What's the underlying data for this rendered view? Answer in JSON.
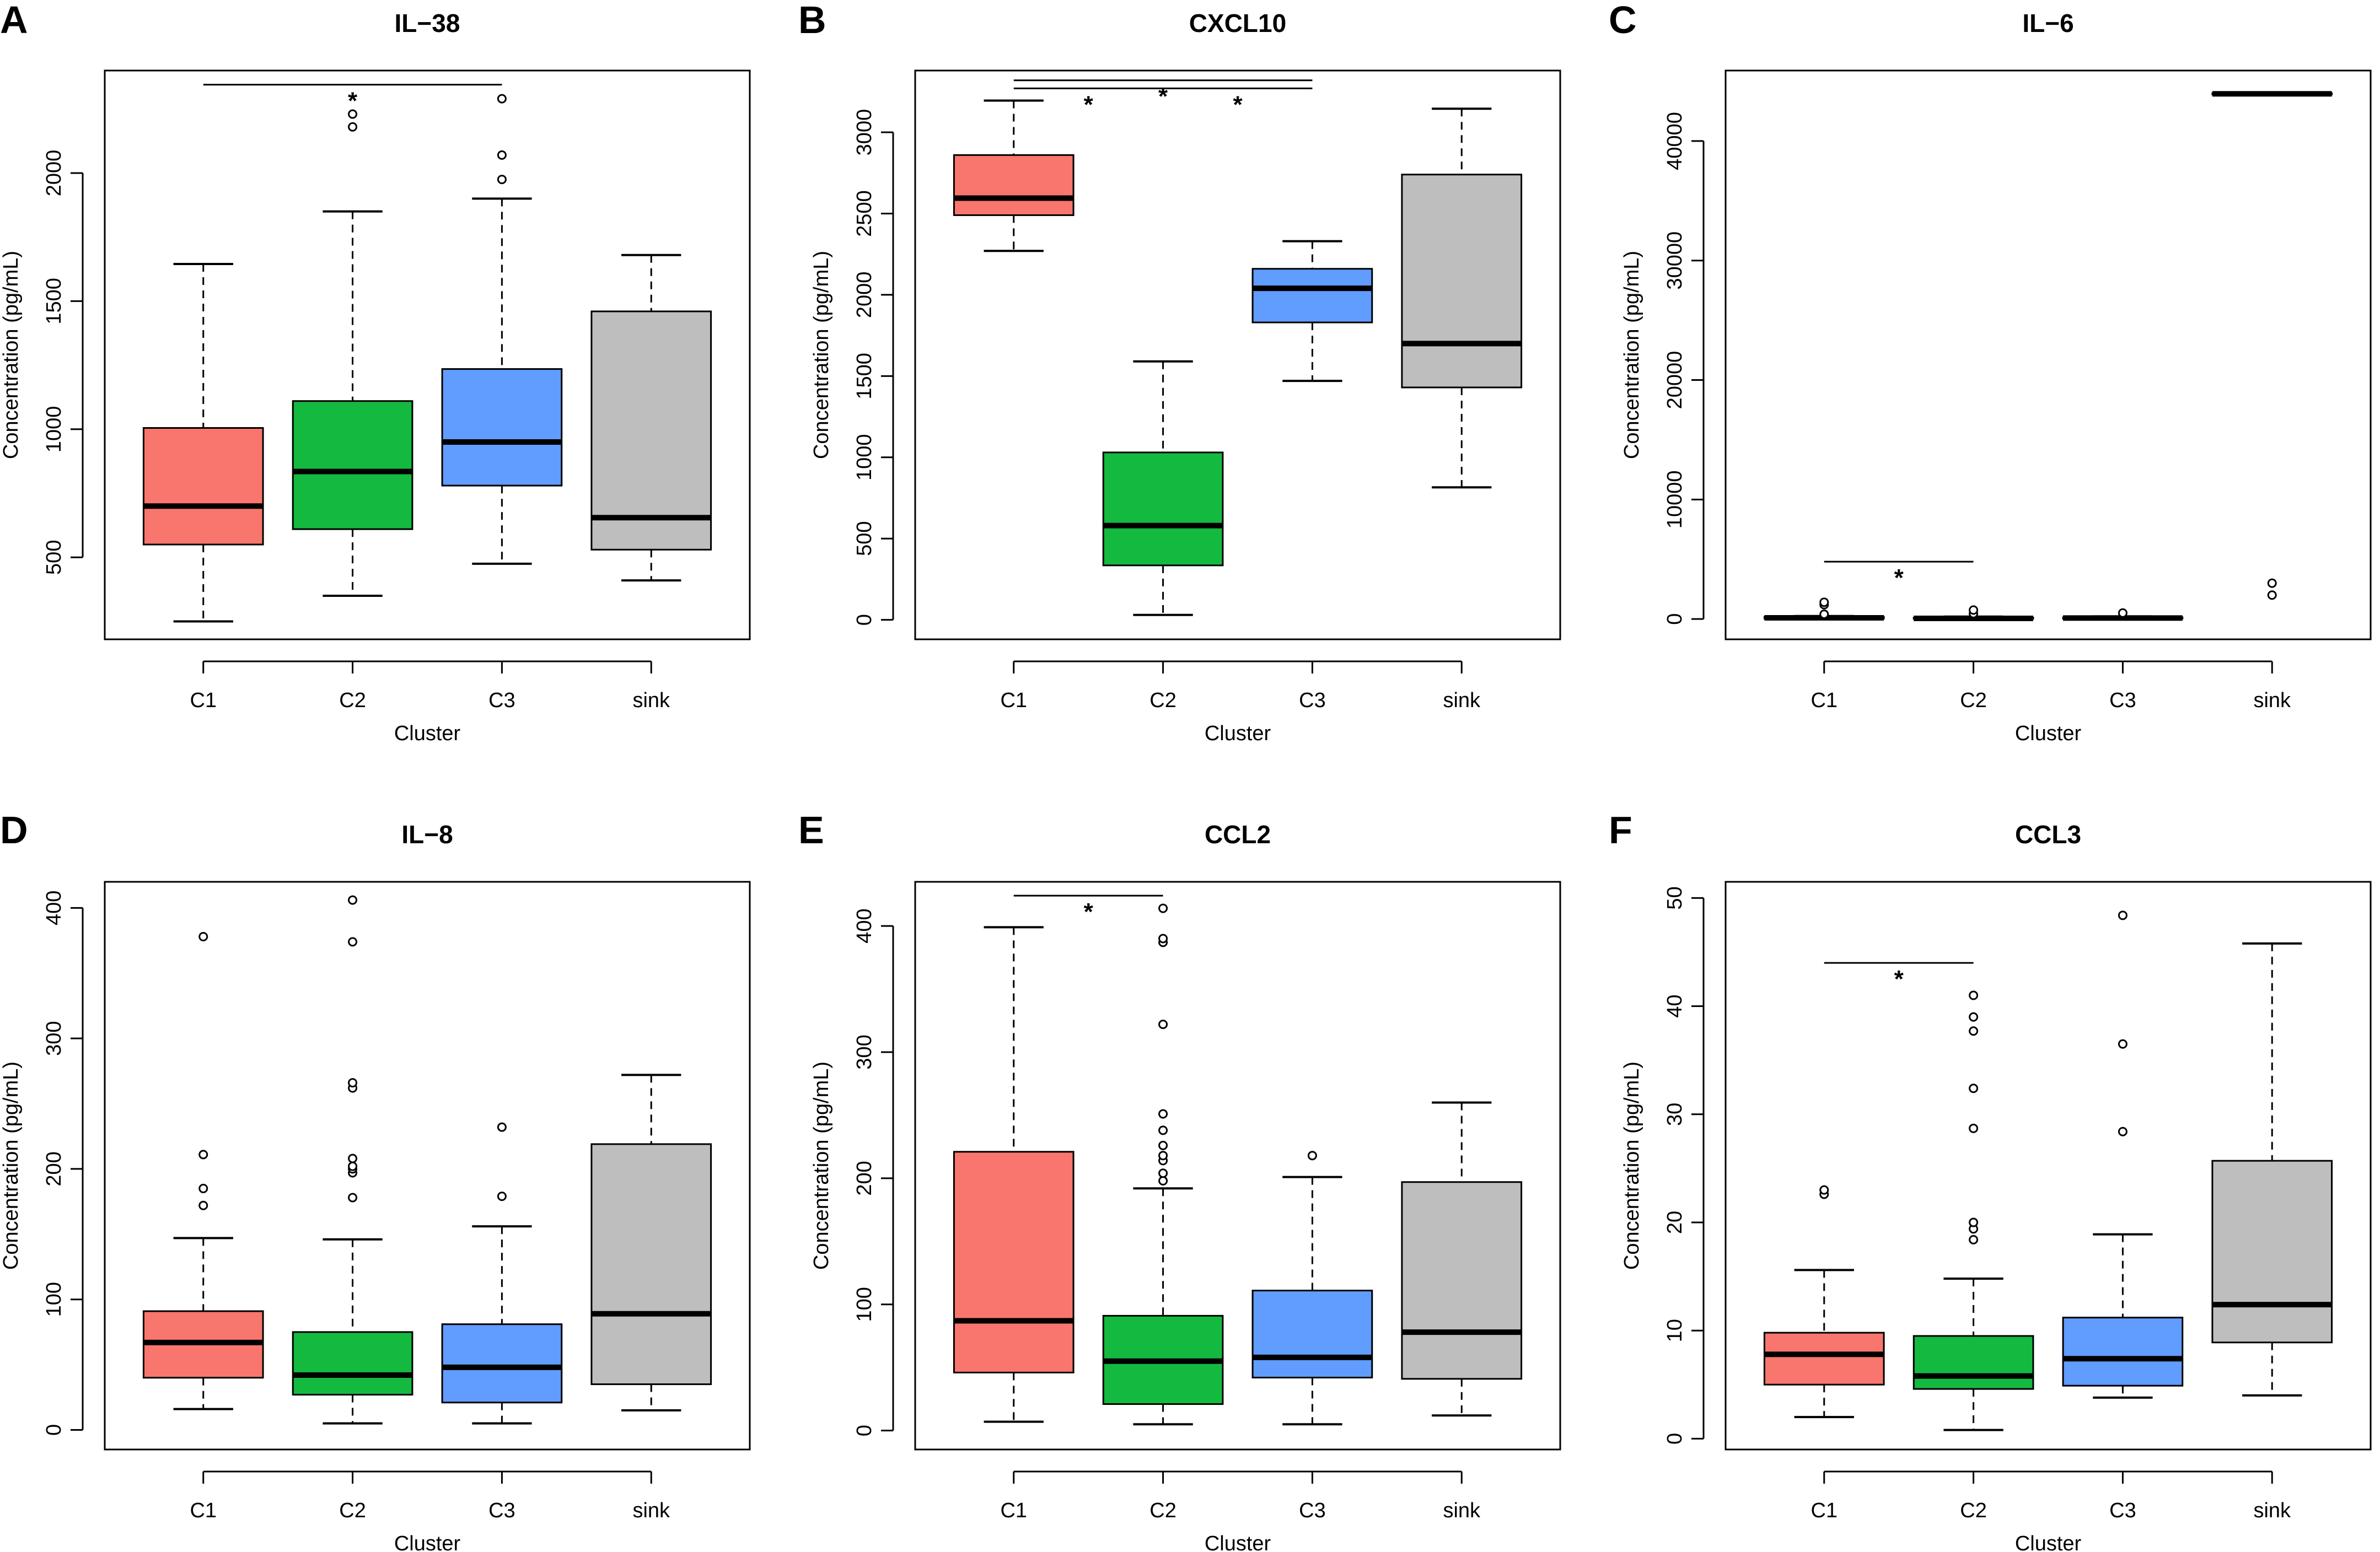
{
  "colors": {
    "C1": "#F8766D",
    "C2": "#14BA40",
    "C3": "#619CFF",
    "sink": "#BEBEBE"
  },
  "chart_data": [
    {
      "type": "boxplot",
      "panel": "A",
      "title": "IL−38",
      "xlabel": "Cluster",
      "ylabel": "Concentration (pg/mL)",
      "categories": [
        "C1",
        "C2",
        "C3",
        "sink"
      ],
      "ylim": [
        180,
        2400
      ],
      "yticks": [
        500,
        1000,
        1500,
        2000
      ],
      "boxes": [
        {
          "q1": 550,
          "median": 700,
          "q3": 1005,
          "wlo": 250,
          "whi": 1645,
          "outliers": []
        },
        {
          "q1": 610,
          "median": 835,
          "q3": 1110,
          "wlo": 350,
          "whi": 1850,
          "outliers": [
            2180,
            2230
          ]
        },
        {
          "q1": 780,
          "median": 950,
          "q3": 1235,
          "wlo": 475,
          "whi": 1900,
          "outliers": [
            1975,
            2070,
            2290
          ]
        },
        {
          "q1": 530,
          "median": 655,
          "q3": 1460,
          "wlo": 410,
          "whi": 1680,
          "outliers": []
        }
      ],
      "significance": [
        {
          "from": "C1",
          "to": "C3",
          "y": 2345,
          "label": "*"
        }
      ]
    },
    {
      "type": "boxplot",
      "panel": "B",
      "title": "CXCL10",
      "xlabel": "Cluster",
      "ylabel": "Concentration (pg/mL)",
      "categories": [
        "C1",
        "C2",
        "C3",
        "sink"
      ],
      "ylim": [
        -120,
        3380
      ],
      "yticks": [
        0,
        500,
        1000,
        1500,
        2000,
        2500,
        3000
      ],
      "boxes": [
        {
          "q1": 2490,
          "median": 2595,
          "q3": 2860,
          "wlo": 2270,
          "whi": 3195,
          "outliers": []
        },
        {
          "q1": 335,
          "median": 580,
          "q3": 1030,
          "wlo": 30,
          "whi": 1590,
          "outliers": []
        },
        {
          "q1": 1830,
          "median": 2040,
          "q3": 2160,
          "wlo": 1470,
          "whi": 2330,
          "outliers": []
        },
        {
          "q1": 1430,
          "median": 1700,
          "q3": 2740,
          "wlo": 815,
          "whi": 3145,
          "outliers": []
        }
      ],
      "significance": [
        {
          "from": "C1",
          "to": "C3",
          "y": 3320,
          "label": "*"
        },
        {
          "from": "C1",
          "to": "C2",
          "y": 3270,
          "label": "*"
        },
        {
          "from": "C2",
          "to": "C3",
          "y": 3270,
          "label": "*"
        }
      ]
    },
    {
      "type": "boxplot",
      "panel": "C",
      "title": "IL−6",
      "xlabel": "Cluster",
      "ylabel": "Concentration (pg/mL)",
      "categories": [
        "C1",
        "C2",
        "C3",
        "sink"
      ],
      "ylim": [
        -1700,
        45900
      ],
      "yticks": [
        0,
        10000,
        20000,
        30000,
        40000
      ],
      "boxes": [
        {
          "q1": 40,
          "median": 100,
          "q3": 180,
          "wlo": 0,
          "whi": 250,
          "outliers": [
            400,
            1200,
            1400
          ]
        },
        {
          "q1": 20,
          "median": 50,
          "q3": 120,
          "wlo": 0,
          "whi": 200,
          "outliers": [
            450,
            750
          ]
        },
        {
          "q1": 30,
          "median": 80,
          "q3": 140,
          "wlo": 0,
          "whi": 220,
          "outliers": [
            500
          ]
        },
        {
          "q1": 43900,
          "median": 43950,
          "q3": 44000,
          "wlo": 43900,
          "whi": 44000,
          "outliers": [
            2000,
            3000
          ]
        }
      ],
      "significance": [
        {
          "from": "C1",
          "to": "C2",
          "y": 4800,
          "label": "*"
        }
      ]
    },
    {
      "type": "boxplot",
      "panel": "D",
      "title": "IL−8",
      "xlabel": "Cluster",
      "ylabel": "Concentration (pg/mL)",
      "categories": [
        "C1",
        "C2",
        "C3",
        "sink"
      ],
      "ylim": [
        -15,
        420
      ],
      "yticks": [
        0,
        100,
        200,
        300,
        400
      ],
      "boxes": [
        {
          "q1": 40,
          "median": 67,
          "q3": 91,
          "wlo": 16,
          "whi": 147,
          "outliers": [
            172,
            185,
            211,
            378
          ]
        },
        {
          "q1": 27,
          "median": 42,
          "q3": 75,
          "wlo": 5,
          "whi": 146,
          "outliers": [
            178,
            197,
            200,
            202,
            208,
            262,
            266,
            374,
            406
          ]
        },
        {
          "q1": 21,
          "median": 48,
          "q3": 81,
          "wlo": 5,
          "whi": 156,
          "outliers": [
            179,
            232
          ]
        },
        {
          "q1": 35,
          "median": 89,
          "q3": 219,
          "wlo": 15,
          "whi": 272,
          "outliers": []
        }
      ],
      "significance": []
    },
    {
      "type": "boxplot",
      "panel": "E",
      "title": "CCL2",
      "xlabel": "Cluster",
      "ylabel": "Concentration (pg/mL)",
      "categories": [
        "C1",
        "C2",
        "C3",
        "sink"
      ],
      "ylim": [
        -15,
        435
      ],
      "yticks": [
        0,
        100,
        200,
        300,
        400
      ],
      "boxes": [
        {
          "q1": 46,
          "median": 87,
          "q3": 221,
          "wlo": 7,
          "whi": 399,
          "outliers": []
        },
        {
          "q1": 21,
          "median": 55,
          "q3": 91,
          "wlo": 5,
          "whi": 192,
          "outliers": [
            198,
            204,
            214,
            218,
            226,
            238,
            251,
            322,
            387,
            390,
            414
          ]
        },
        {
          "q1": 42,
          "median": 58,
          "q3": 111,
          "wlo": 5,
          "whi": 201,
          "outliers": [
            218
          ]
        },
        {
          "q1": 41,
          "median": 78,
          "q3": 197,
          "wlo": 12,
          "whi": 260,
          "outliers": []
        }
      ],
      "significance": [
        {
          "from": "C1",
          "to": "C2",
          "y": 424,
          "label": "*"
        }
      ]
    },
    {
      "type": "boxplot",
      "panel": "F",
      "title": "CCL3",
      "xlabel": "Cluster",
      "ylabel": "Concentration (pg/mL)",
      "categories": [
        "C1",
        "C2",
        "C3",
        "sink"
      ],
      "ylim": [
        -1,
        51.5
      ],
      "yticks": [
        0,
        10,
        20,
        30,
        40,
        50
      ],
      "boxes": [
        {
          "q1": 5,
          "median": 7.8,
          "q3": 9.8,
          "wlo": 2,
          "whi": 15.6,
          "outliers": [
            22.6,
            23
          ]
        },
        {
          "q1": 4.6,
          "median": 5.8,
          "q3": 9.5,
          "wlo": 0.8,
          "whi": 14.8,
          "outliers": [
            18.4,
            19.4,
            20,
            28.7,
            32.4,
            37.7,
            39,
            41
          ]
        },
        {
          "q1": 4.9,
          "median": 7.4,
          "q3": 11.2,
          "wlo": 3.8,
          "whi": 18.9,
          "outliers": [
            28.4,
            36.5,
            48.4
          ]
        },
        {
          "q1": 8.9,
          "median": 12.4,
          "q3": 25.7,
          "wlo": 4,
          "whi": 45.8,
          "outliers": []
        }
      ],
      "significance": [
        {
          "from": "C1",
          "to": "C2",
          "y": 44,
          "label": "*"
        }
      ]
    }
  ]
}
